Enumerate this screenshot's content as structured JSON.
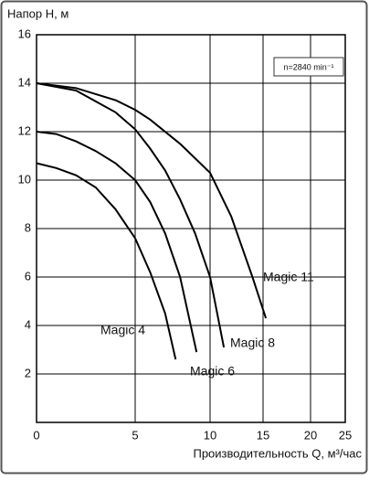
{
  "chart_data": {
    "type": "line",
    "y_label": "Напор Н, м",
    "x_label": "Производительность Q, м³/час",
    "annotation": "n=2840 min⁻¹",
    "xlim": [
      0,
      25
    ],
    "xticks": [
      0,
      5,
      10,
      15,
      20,
      25
    ],
    "ylim": [
      0,
      16
    ],
    "yticks": [
      2,
      4,
      6,
      8,
      10,
      12,
      14,
      16
    ],
    "grid": true,
    "series": [
      {
        "name": "Magic 4",
        "color": "#000000",
        "x": [
          0,
          1,
          2,
          3,
          4,
          5,
          6,
          7,
          7.7
        ],
        "values": [
          10.7,
          10.5,
          10.2,
          9.7,
          8.8,
          7.6,
          6.2,
          4.5,
          2.6
        ]
      },
      {
        "name": "Magic 6",
        "color": "#000000",
        "x": [
          0,
          1,
          2,
          3,
          4,
          5,
          6,
          7,
          8,
          9.1
        ],
        "values": [
          12,
          11.9,
          11.6,
          11.2,
          10.7,
          10.0,
          9.1,
          7.8,
          6.0,
          2.9
        ]
      },
      {
        "name": "Magic 8",
        "color": "#000000",
        "x": [
          0,
          2,
          4,
          5,
          6,
          7,
          8,
          9,
          10,
          11.3
        ],
        "values": [
          14,
          13.7,
          12.8,
          12.1,
          11.3,
          10.4,
          9.2,
          7.8,
          6.0,
          3.1
        ]
      },
      {
        "name": "Magic 11",
        "color": "#000000",
        "x": [
          0,
          2,
          4,
          5,
          6,
          8,
          10,
          12,
          14,
          15.3
        ],
        "values": [
          14,
          13.8,
          13.3,
          12.9,
          12.5,
          11.5,
          10.3,
          8.5,
          6.0,
          4.3
        ]
      }
    ]
  }
}
